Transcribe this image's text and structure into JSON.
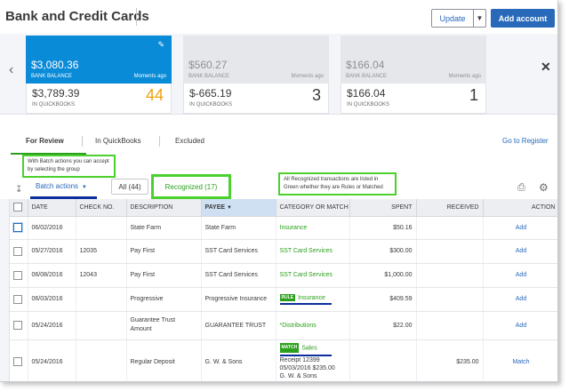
{
  "header": {
    "title": "Bank and Credit Cards",
    "update_label": "Update",
    "add_account_label": "Add account"
  },
  "cards": [
    {
      "bank_balance": "$3,080.36",
      "bank_label": "BANK BALANCE",
      "updated": "Moments ago",
      "qb_balance": "$3,789.39",
      "qb_label": "IN QUICKBOOKS",
      "count": "44"
    },
    {
      "bank_balance": "$560.27",
      "bank_label": "BANK BALANCE",
      "updated": "Moments ago",
      "qb_balance": "$-665.19",
      "qb_label": "IN QUICKBOOKS",
      "count": "3"
    },
    {
      "bank_balance": "$166.04",
      "bank_label": "BANK BALANCE",
      "updated": "Moments ago",
      "qb_balance": "$166.04",
      "qb_label": "IN QUICKBOOKS",
      "count": "1"
    }
  ],
  "tabs": {
    "for_review": "For Review",
    "in_quickbooks": "In QuickBooks",
    "excluded": "Excluded",
    "go_register": "Go to Register"
  },
  "toolbar": {
    "tooltip_batch": "With Batch actions you can accept by selecting the group",
    "tooltip_recognized": "All Recognized transactions are listed in Green whether they are Rules or Matched",
    "batch_actions": "Batch actions",
    "filter_all": "All (44)",
    "filter_recognized": "Recognized (17)"
  },
  "table": {
    "headers": {
      "date": "DATE",
      "check_no": "CHECK NO.",
      "description": "DESCRIPTION",
      "payee": "PAYEE",
      "category": "CATEGORY OR MATCH",
      "spent": "SPENT",
      "received": "RECEIVED",
      "action": "ACTION"
    },
    "rows": [
      {
        "date": "06/02/2016",
        "check_no": "",
        "description": "State Farm",
        "payee": "State Farm",
        "badge": "",
        "category": "Insurance",
        "spent": "$50.16",
        "received": "",
        "action": "Add"
      },
      {
        "date": "05/27/2016",
        "check_no": "12035",
        "description": "Pay First",
        "payee": "SST Card Services",
        "badge": "",
        "category": "SST Card Services",
        "spent": "$300.00",
        "received": "",
        "action": "Add"
      },
      {
        "date": "06/08/2016",
        "check_no": "12043",
        "description": "Pay First",
        "payee": "SST Card Services",
        "badge": "",
        "category": "SST Card Services",
        "spent": "$1,000.00",
        "received": "",
        "action": "Add"
      },
      {
        "date": "06/03/2016",
        "check_no": "",
        "description": "Progressive",
        "payee": "Progressive Insurance",
        "badge": "RULE",
        "category": "Insurance",
        "spent": "$409.59",
        "received": "",
        "action": "Add"
      },
      {
        "date": "05/24/2016",
        "check_no": "",
        "description": "Guarantee Trust Amount",
        "payee": "GUARANTEE TRUST",
        "badge": "",
        "category": "*Distributions",
        "spent": "$22.00",
        "received": "",
        "action": "Add"
      },
      {
        "date": "05/24/2016",
        "check_no": "",
        "description": "Regular Deposit",
        "payee": "G. W. & Sons",
        "badge": "MATCH",
        "category": "Sales",
        "category_line2": "Receipt 12399",
        "category_line3": "05/03/2016 $235.00",
        "category_line4": "G. W. & Sons",
        "spent": "",
        "received": "$235.00",
        "action": "Match"
      }
    ]
  },
  "colors": {
    "accent_blue": "#2869ba",
    "active_card": "#0a8bd8",
    "count_orange": "#f0a30a",
    "recognized_green": "#2ca01c"
  }
}
